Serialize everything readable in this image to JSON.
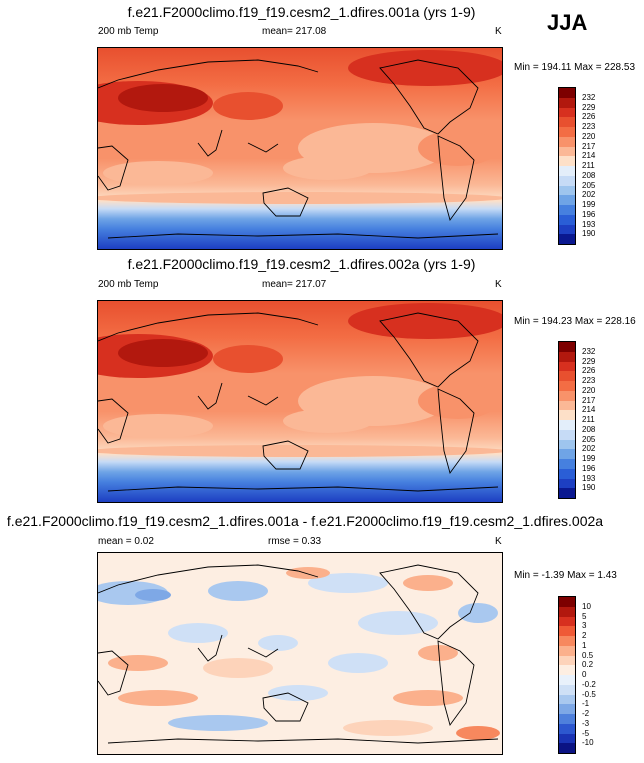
{
  "season": "JJA",
  "panels": [
    {
      "title": "f.e21.F2000climo.f19_f19.cesm2_1.dfires.001a (yrs 1-9)",
      "left_label": "200 mb Temp",
      "center_label": "mean= 217.08",
      "units": "K",
      "minmax": "Min = 194.11 Max = 228.53",
      "levels": [
        "232",
        "229",
        "226",
        "223",
        "220",
        "217",
        "214",
        "211",
        "208",
        "205",
        "202",
        "199",
        "196",
        "193",
        "190"
      ],
      "colors": [
        "#7d0000",
        "#b2180e",
        "#d7301f",
        "#e8502f",
        "#f36d44",
        "#f8926a",
        "#fbb896",
        "#fde0c8",
        "#e3eefa",
        "#c6dbf6",
        "#9ec5ee",
        "#6fa4e6",
        "#4680df",
        "#2a5ed6",
        "#1d3fc2",
        "#0a1890"
      ]
    },
    {
      "title": "f.e21.F2000climo.f19_f19.cesm2_1.dfires.002a (yrs 1-9)",
      "left_label": "200 mb Temp",
      "center_label": "mean= 217.07",
      "units": "K",
      "minmax": "Min = 194.23 Max = 228.16",
      "levels": [
        "232",
        "229",
        "226",
        "223",
        "220",
        "217",
        "214",
        "211",
        "208",
        "205",
        "202",
        "199",
        "196",
        "193",
        "190"
      ],
      "colors": [
        "#7d0000",
        "#b2180e",
        "#d7301f",
        "#e8502f",
        "#f36d44",
        "#f8926a",
        "#fbb896",
        "#fde0c8",
        "#e3eefa",
        "#c6dbf6",
        "#9ec5ee",
        "#6fa4e6",
        "#4680df",
        "#2a5ed6",
        "#1d3fc2",
        "#0a1890"
      ]
    },
    {
      "title": "f.e21.F2000climo.f19_f19.cesm2_1.dfires.001a - f.e21.F2000climo.f19_f19.cesm2_1.dfires.002a",
      "left_label": "mean =   0.02",
      "center_label": "rmse =   0.33",
      "units": "K",
      "minmax": "Min =  -1.39 Max =   1.43",
      "levels": [
        "10",
        "5",
        "3",
        "2",
        "1",
        "0.5",
        "0.2",
        "0",
        "-0.2",
        "-0.5",
        "-1",
        "-2",
        "-3",
        "-5",
        "-10"
      ],
      "colors": [
        "#7d0000",
        "#b2180e",
        "#d7301f",
        "#ef5a36",
        "#f7885e",
        "#fbb08c",
        "#fdd3ba",
        "#fdeee2",
        "#e9f1fb",
        "#cfe0f6",
        "#a9c8ef",
        "#7ea8e6",
        "#4f80dc",
        "#2d57cf",
        "#1a33b4",
        "#0b1383"
      ]
    }
  ],
  "chart_data": [
    {
      "type": "heatmap",
      "title": "f.e21.F2000climo.f19_f19.cesm2_1.dfires.001a (yrs 1-9)",
      "variable": "200 mb Temp",
      "units": "K",
      "mean": 217.08,
      "min": 194.11,
      "max": 228.53,
      "contour_levels": [
        190,
        193,
        196,
        199,
        202,
        205,
        208,
        211,
        214,
        217,
        220,
        223,
        226,
        229,
        232
      ]
    },
    {
      "type": "heatmap",
      "title": "f.e21.F2000climo.f19_f19.cesm2_1.dfires.002a (yrs 1-9)",
      "variable": "200 mb Temp",
      "units": "K",
      "mean": 217.07,
      "min": 194.23,
      "max": 228.16,
      "contour_levels": [
        190,
        193,
        196,
        199,
        202,
        205,
        208,
        211,
        214,
        217,
        220,
        223,
        226,
        229,
        232
      ]
    },
    {
      "type": "heatmap",
      "title": "f.e21.F2000climo.f19_f19.cesm2_1.dfires.001a - f.e21.F2000climo.f19_f19.cesm2_1.dfires.002a",
      "units": "K",
      "mean": 0.02,
      "rmse": 0.33,
      "min": -1.39,
      "max": 1.43,
      "contour_levels": [
        -10,
        -5,
        -3,
        -2,
        -1,
        -0.5,
        -0.2,
        0,
        0.2,
        0.5,
        1,
        2,
        3,
        5,
        10
      ]
    }
  ]
}
